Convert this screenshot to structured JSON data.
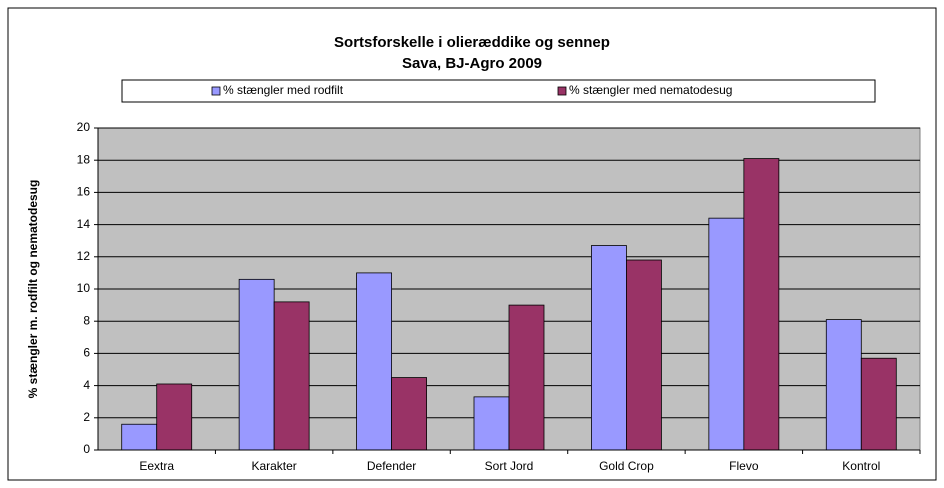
{
  "chart_data": {
    "type": "bar",
    "title": "Sortsforskelle i olieræddike og sennep",
    "subtitle": "Sava, BJ-Agro 2009",
    "y_label": "% stængler m. rodfilt og nematodesug",
    "categories": [
      "Eextra",
      "Karakter",
      "Defender",
      "Sort Jord",
      "Gold Crop",
      "Flevo",
      "Kontrol"
    ],
    "series": [
      {
        "name": "% stængler med rodfilt",
        "color": "#9999ff",
        "values": [
          1.6,
          10.6,
          11.0,
          3.3,
          12.7,
          14.4,
          8.1
        ]
      },
      {
        "name": "% stængler med nematodesug",
        "color": "#993366",
        "values": [
          4.1,
          9.2,
          4.5,
          9.0,
          11.8,
          18.1,
          5.7
        ]
      }
    ],
    "ylim": [
      0,
      20
    ],
    "yticks": [
      0,
      2,
      4,
      6,
      8,
      10,
      12,
      14,
      16,
      18,
      20
    ],
    "grid": true
  }
}
